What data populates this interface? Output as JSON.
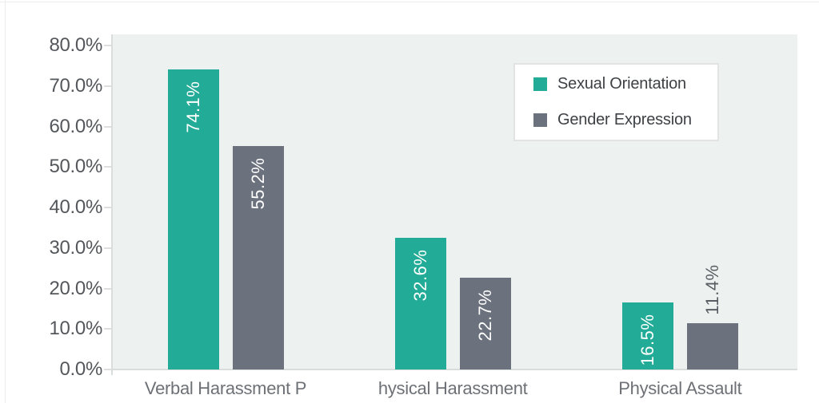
{
  "chart_data": {
    "type": "bar",
    "title": "",
    "xlabel": "",
    "ylabel": "",
    "ylim": [
      0,
      80
    ],
    "grid": false,
    "legend_position": "top-right",
    "categories": [
      "Verbal Harassment P",
      "hysical Harassment",
      "Physical Assault"
    ],
    "series": [
      {
        "name": "Sexual Orientation",
        "color": "#22ab96",
        "values": [
          74.1,
          32.6,
          16.5
        ],
        "labels": [
          "74.1%",
          "32.6%",
          "16.5%"
        ]
      },
      {
        "name": "Gender Expression",
        "color": "#6b727e",
        "values": [
          55.2,
          22.7,
          11.4
        ],
        "labels": [
          "55.2%",
          "22.7%",
          "11.4%"
        ]
      }
    ],
    "yticks": [
      {
        "value": 0,
        "label": "0.0%"
      },
      {
        "value": 10,
        "label": "10.0%"
      },
      {
        "value": 20,
        "label": "20.0%"
      },
      {
        "value": 30,
        "label": "30.0%"
      },
      {
        "value": 40,
        "label": "40.0%"
      },
      {
        "value": 50,
        "label": "50.0%"
      },
      {
        "value": 60,
        "label": "60.0%"
      },
      {
        "value": 70,
        "label": "70.0%"
      },
      {
        "value": 80,
        "label": "80.0%"
      }
    ]
  },
  "legend": {
    "items": [
      {
        "label": "Sexual Orientation",
        "color": "#22ab96"
      },
      {
        "label": "Gender Expression",
        "color": "#6b727e"
      }
    ]
  },
  "colors": {
    "plot_background": "#edf2f1",
    "axis_line": "#d9dddc",
    "tick": "#dcdfde",
    "y_label_text": "#54575b",
    "x_label_text": "#6d7176",
    "bar_label_inside": "#ffffff",
    "bar_label_outside": "#5a5e63",
    "legend_border": "#e3e3e3",
    "legend_text": "#3e4145"
  }
}
